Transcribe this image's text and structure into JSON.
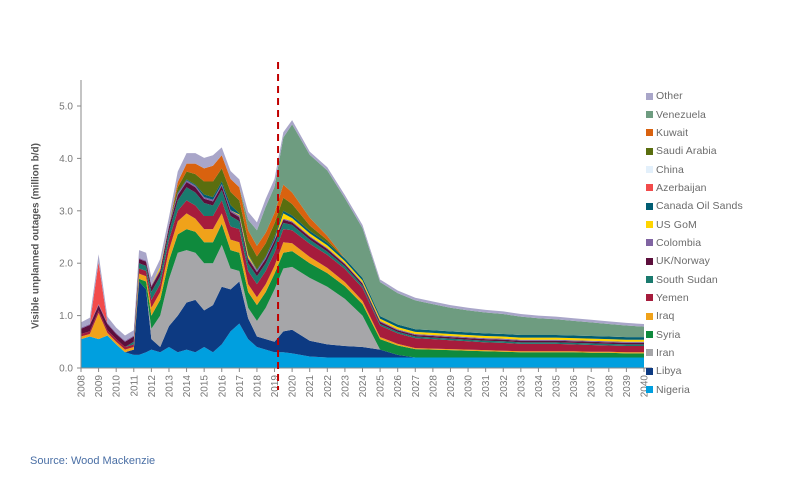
{
  "chart_data": {
    "type": "area",
    "stacked": true,
    "title": "",
    "xlabel": "",
    "ylabel": "Visible unplanned outages (million b/d)",
    "ylim": [
      0,
      5.5
    ],
    "yticks": [
      "0.0",
      "1.0",
      "2.0",
      "3.0",
      "4.0",
      "5.0"
    ],
    "xticks": [
      "2008",
      "2009",
      "2010",
      "2011",
      "2012",
      "2013",
      "2014",
      "2015",
      "2016",
      "2017",
      "2018",
      "2019",
      "2020",
      "2021",
      "2022",
      "2023",
      "2024",
      "2025",
      "2026",
      "2027",
      "2028",
      "2029",
      "2030",
      "2031",
      "2032",
      "2033",
      "2034",
      "2035",
      "2036",
      "2037",
      "2038",
      "2039",
      "2040"
    ],
    "annotation": {
      "type": "vertical-dashed-line",
      "x": 2019.2,
      "color": "#c00000"
    },
    "legend_position": "right",
    "x": [
      2008,
      2008.5,
      2009,
      2009.5,
      2010,
      2010.5,
      2011,
      2011.3,
      2011.7,
      2012,
      2012.5,
      2013,
      2013.5,
      2014,
      2014.5,
      2015,
      2015.5,
      2016,
      2016.5,
      2017,
      2017.5,
      2018,
      2018.5,
      2019,
      2019.5,
      2020,
      2021,
      2022,
      2023,
      2024,
      2025,
      2026,
      2027,
      2028,
      2029,
      2030,
      2031,
      2032,
      2033,
      2034,
      2035,
      2036,
      2037,
      2038,
      2039,
      2040
    ],
    "series": [
      {
        "name": "Nigeria",
        "color": "#009fdf",
        "values": [
          0.55,
          0.6,
          0.55,
          0.62,
          0.45,
          0.3,
          0.25,
          0.25,
          0.3,
          0.35,
          0.3,
          0.4,
          0.3,
          0.35,
          0.3,
          0.4,
          0.3,
          0.45,
          0.7,
          0.85,
          0.55,
          0.4,
          0.35,
          0.3,
          0.3,
          0.28,
          0.22,
          0.2,
          0.2,
          0.2,
          0.2,
          0.2,
          0.2,
          0.2,
          0.2,
          0.2,
          0.2,
          0.2,
          0.2,
          0.2,
          0.2,
          0.2,
          0.2,
          0.2,
          0.2,
          0.2
        ]
      },
      {
        "name": "Libya",
        "color": "#0d3a82",
        "values": [
          0.0,
          0.0,
          0.0,
          0.0,
          0.0,
          0.0,
          0.1,
          1.4,
          1.2,
          0.2,
          0.1,
          0.4,
          0.7,
          0.9,
          1.0,
          0.7,
          0.9,
          1.1,
          0.8,
          0.8,
          0.4,
          0.2,
          0.2,
          0.2,
          0.4,
          0.45,
          0.3,
          0.25,
          0.22,
          0.2,
          0.15,
          0.05,
          0.0,
          0.0,
          0.0,
          0.0,
          0.0,
          0.0,
          0.0,
          0.0,
          0.0,
          0.0,
          0.0,
          0.0,
          0.0,
          0.0
        ]
      },
      {
        "name": "Iran",
        "color": "#a6a6a9",
        "values": [
          0.0,
          0.0,
          0.0,
          0.0,
          0.0,
          0.0,
          0.0,
          0.0,
          0.0,
          0.2,
          0.6,
          0.9,
          1.2,
          1.0,
          0.9,
          0.9,
          0.8,
          0.8,
          0.4,
          0.2,
          0.2,
          0.3,
          0.6,
          1.0,
          1.2,
          1.2,
          1.2,
          1.1,
          0.9,
          0.6,
          0.0,
          0.0,
          0.0,
          0.0,
          0.0,
          0.0,
          0.0,
          0.0,
          0.0,
          0.0,
          0.0,
          0.0,
          0.0,
          0.0,
          0.0,
          0.0
        ]
      },
      {
        "name": "Syria",
        "color": "#0f8a3d",
        "values": [
          0.0,
          0.0,
          0.0,
          0.0,
          0.0,
          0.0,
          0.0,
          0.05,
          0.15,
          0.25,
          0.3,
          0.35,
          0.35,
          0.4,
          0.4,
          0.4,
          0.4,
          0.4,
          0.35,
          0.35,
          0.3,
          0.3,
          0.3,
          0.3,
          0.3,
          0.3,
          0.28,
          0.26,
          0.24,
          0.22,
          0.2,
          0.18,
          0.16,
          0.15,
          0.14,
          0.13,
          0.12,
          0.11,
          0.1,
          0.1,
          0.1,
          0.1,
          0.09,
          0.09,
          0.08,
          0.08
        ]
      },
      {
        "name": "Iraq",
        "color": "#f0a21a",
        "values": [
          0.05,
          0.05,
          0.5,
          0.05,
          0.05,
          0.05,
          0.05,
          0.1,
          0.1,
          0.15,
          0.15,
          0.2,
          0.25,
          0.3,
          0.25,
          0.25,
          0.25,
          0.2,
          0.2,
          0.2,
          0.15,
          0.15,
          0.15,
          0.15,
          0.2,
          0.15,
          0.12,
          0.1,
          0.08,
          0.06,
          0.04,
          0.03,
          0.02,
          0.02,
          0.02,
          0.02,
          0.02,
          0.02,
          0.02,
          0.02,
          0.02,
          0.02,
          0.02,
          0.02,
          0.02,
          0.02
        ]
      },
      {
        "name": "Yemen",
        "color": "#a61c3c",
        "values": [
          0.05,
          0.05,
          0.05,
          0.05,
          0.05,
          0.05,
          0.05,
          0.1,
          0.1,
          0.15,
          0.15,
          0.2,
          0.2,
          0.25,
          0.25,
          0.25,
          0.25,
          0.25,
          0.25,
          0.25,
          0.25,
          0.25,
          0.25,
          0.25,
          0.25,
          0.25,
          0.25,
          0.25,
          0.25,
          0.25,
          0.22,
          0.2,
          0.19,
          0.18,
          0.17,
          0.16,
          0.15,
          0.15,
          0.14,
          0.14,
          0.14,
          0.13,
          0.13,
          0.12,
          0.12,
          0.12
        ]
      },
      {
        "name": "South Sudan",
        "color": "#1a7a6e",
        "values": [
          0.0,
          0.0,
          0.0,
          0.0,
          0.0,
          0.0,
          0.05,
          0.1,
          0.1,
          0.15,
          0.15,
          0.15,
          0.2,
          0.25,
          0.25,
          0.25,
          0.2,
          0.2,
          0.2,
          0.15,
          0.15,
          0.15,
          0.15,
          0.15,
          0.12,
          0.1,
          0.08,
          0.06,
          0.05,
          0.04,
          0.03,
          0.03,
          0.03,
          0.03,
          0.03,
          0.03,
          0.03,
          0.03,
          0.03,
          0.03,
          0.03,
          0.03,
          0.03,
          0.03,
          0.03,
          0.03
        ]
      },
      {
        "name": "UK/Norway",
        "color": "#5c0f3c",
        "values": [
          0.1,
          0.12,
          0.1,
          0.12,
          0.1,
          0.1,
          0.1,
          0.08,
          0.08,
          0.1,
          0.1,
          0.1,
          0.1,
          0.1,
          0.1,
          0.08,
          0.08,
          0.08,
          0.08,
          0.08,
          0.08,
          0.08,
          0.08,
          0.08,
          0.06,
          0.05,
          0.05,
          0.05,
          0.04,
          0.04,
          0.04,
          0.03,
          0.03,
          0.03,
          0.03,
          0.03,
          0.03,
          0.03,
          0.03,
          0.03,
          0.03,
          0.03,
          0.03,
          0.03,
          0.03,
          0.03
        ]
      },
      {
        "name": "Colombia",
        "color": "#8064a2",
        "values": [
          0.02,
          0.02,
          0.02,
          0.02,
          0.02,
          0.02,
          0.02,
          0.02,
          0.02,
          0.03,
          0.03,
          0.03,
          0.03,
          0.03,
          0.03,
          0.03,
          0.03,
          0.03,
          0.03,
          0.03,
          0.03,
          0.03,
          0.03,
          0.03,
          0.02,
          0.02,
          0.02,
          0.02,
          0.02,
          0.02,
          0.02,
          0.02,
          0.02,
          0.02,
          0.02,
          0.02,
          0.02,
          0.02,
          0.02,
          0.02,
          0.02,
          0.02,
          0.02,
          0.02,
          0.02,
          0.02
        ]
      },
      {
        "name": "US GoM",
        "color": "#ffd500",
        "values": [
          0.0,
          0.0,
          0.0,
          0.0,
          0.0,
          0.0,
          0.0,
          0.0,
          0.0,
          0.0,
          0.05,
          0.0,
          0.0,
          0.0,
          0.0,
          0.0,
          0.0,
          0.0,
          0.0,
          0.02,
          0.05,
          0.0,
          0.0,
          0.0,
          0.1,
          0.06,
          0.05,
          0.05,
          0.04,
          0.04,
          0.04,
          0.04,
          0.04,
          0.04,
          0.04,
          0.04,
          0.04,
          0.04,
          0.04,
          0.04,
          0.04,
          0.04,
          0.04,
          0.04,
          0.04,
          0.04
        ]
      },
      {
        "name": "Canada Oil Sands",
        "color": "#005d73",
        "values": [
          0.0,
          0.0,
          0.0,
          0.0,
          0.0,
          0.0,
          0.0,
          0.0,
          0.0,
          0.0,
          0.0,
          0.0,
          0.02,
          0.02,
          0.02,
          0.05,
          0.05,
          0.05,
          0.1,
          0.02,
          0.02,
          0.02,
          0.02,
          0.05,
          0.05,
          0.05,
          0.05,
          0.05,
          0.05,
          0.05,
          0.05,
          0.05,
          0.05,
          0.05,
          0.05,
          0.05,
          0.05,
          0.05,
          0.05,
          0.05,
          0.05,
          0.05,
          0.05,
          0.05,
          0.05,
          0.05
        ]
      },
      {
        "name": "Azerbaijan",
        "color": "#f24b4b",
        "values": [
          0.0,
          0.0,
          0.8,
          0.0,
          0.0,
          0.0,
          0.0,
          0.0,
          0.0,
          0.0,
          0.0,
          0.0,
          0.0,
          0.0,
          0.0,
          0.0,
          0.0,
          0.0,
          0.0,
          0.0,
          0.0,
          0.0,
          0.0,
          0.0,
          0.0,
          0.0,
          0.0,
          0.0,
          0.0,
          0.0,
          0.0,
          0.0,
          0.0,
          0.0,
          0.0,
          0.0,
          0.0,
          0.0,
          0.0,
          0.0,
          0.0,
          0.0,
          0.0,
          0.0,
          0.0,
          0.0
        ]
      },
      {
        "name": "China",
        "color": "#e3f0fb",
        "values": [
          0.0,
          0.0,
          0.0,
          0.0,
          0.0,
          0.0,
          0.0,
          0.0,
          0.0,
          0.0,
          0.0,
          0.0,
          0.0,
          0.0,
          0.0,
          0.0,
          0.0,
          0.0,
          0.0,
          0.0,
          0.0,
          0.0,
          0.0,
          0.0,
          0.0,
          0.0,
          0.0,
          0.0,
          0.0,
          0.0,
          0.0,
          0.0,
          0.0,
          0.0,
          0.0,
          0.0,
          0.0,
          0.0,
          0.0,
          0.0,
          0.0,
          0.0,
          0.0,
          0.0,
          0.0,
          0.0
        ]
      },
      {
        "name": "Saudi Arabia",
        "color": "#5a6e0f",
        "values": [
          0.0,
          0.0,
          0.0,
          0.0,
          0.0,
          0.0,
          0.0,
          0.0,
          0.0,
          0.0,
          0.0,
          0.0,
          0.1,
          0.15,
          0.2,
          0.25,
          0.3,
          0.25,
          0.25,
          0.25,
          0.25,
          0.25,
          0.25,
          0.25,
          0.25,
          0.22,
          0.1,
          0.05,
          0.0,
          0.0,
          0.0,
          0.0,
          0.0,
          0.0,
          0.0,
          0.0,
          0.0,
          0.0,
          0.0,
          0.0,
          0.0,
          0.0,
          0.0,
          0.0,
          0.0,
          0.0
        ]
      },
      {
        "name": "Kuwait",
        "color": "#d9620f",
        "values": [
          0.0,
          0.0,
          0.0,
          0.0,
          0.0,
          0.0,
          0.0,
          0.0,
          0.0,
          0.0,
          0.0,
          0.0,
          0.1,
          0.15,
          0.2,
          0.25,
          0.3,
          0.25,
          0.25,
          0.25,
          0.2,
          0.2,
          0.2,
          0.2,
          0.25,
          0.22,
          0.15,
          0.08,
          0.0,
          0.0,
          0.0,
          0.0,
          0.0,
          0.0,
          0.0,
          0.0,
          0.0,
          0.0,
          0.0,
          0.0,
          0.0,
          0.0,
          0.0,
          0.0,
          0.0,
          0.0
        ]
      },
      {
        "name": "Venezuela",
        "color": "#6e9c80",
        "values": [
          0.0,
          0.0,
          0.0,
          0.0,
          0.0,
          0.0,
          0.0,
          0.0,
          0.0,
          0.0,
          0.0,
          0.0,
          0.0,
          0.0,
          0.0,
          0.0,
          0.0,
          0.0,
          0.0,
          0.0,
          0.2,
          0.3,
          0.5,
          0.5,
          0.9,
          1.3,
          1.2,
          1.25,
          1.15,
          0.95,
          0.65,
          0.6,
          0.55,
          0.5,
          0.45,
          0.42,
          0.4,
          0.38,
          0.35,
          0.32,
          0.3,
          0.28,
          0.26,
          0.24,
          0.22,
          0.2
        ]
      },
      {
        "name": "Other",
        "color": "#a9a6c9",
        "values": [
          0.1,
          0.12,
          0.15,
          0.12,
          0.1,
          0.1,
          0.1,
          0.15,
          0.15,
          0.15,
          0.15,
          0.15,
          0.2,
          0.2,
          0.2,
          0.2,
          0.2,
          0.15,
          0.15,
          0.15,
          0.15,
          0.15,
          0.15,
          0.15,
          0.1,
          0.08,
          0.06,
          0.06,
          0.06,
          0.06,
          0.05,
          0.05,
          0.05,
          0.05,
          0.05,
          0.05,
          0.05,
          0.05,
          0.05,
          0.05,
          0.05,
          0.05,
          0.05,
          0.05,
          0.05,
          0.05
        ]
      }
    ]
  },
  "legend": {
    "items": [
      {
        "label": "Other",
        "color": "#a9a6c9"
      },
      {
        "label": "Venezuela",
        "color": "#6e9c80"
      },
      {
        "label": "Kuwait",
        "color": "#d9620f"
      },
      {
        "label": "Saudi Arabia",
        "color": "#5a6e0f"
      },
      {
        "label": "China",
        "color": "#e3f0fb"
      },
      {
        "label": "Azerbaijan",
        "color": "#f24b4b"
      },
      {
        "label": "Canada Oil Sands",
        "color": "#005d73"
      },
      {
        "label": "US GoM",
        "color": "#ffd500"
      },
      {
        "label": "Colombia",
        "color": "#8064a2"
      },
      {
        "label": "UK/Norway",
        "color": "#5c0f3c"
      },
      {
        "label": "South Sudan",
        "color": "#1a7a6e"
      },
      {
        "label": "Yemen",
        "color": "#a61c3c"
      },
      {
        "label": "Iraq",
        "color": "#f0a21a"
      },
      {
        "label": "Syria",
        "color": "#0f8a3d"
      },
      {
        "label": "Iran",
        "color": "#a6a6a9"
      },
      {
        "label": "Libya",
        "color": "#0d3a82"
      },
      {
        "label": "Nigeria",
        "color": "#009fdf"
      }
    ]
  },
  "axis": {
    "ylabel": "Visible unplanned outages (million b/d)"
  },
  "footer": {
    "source": "Source: Wood Mackenzie"
  }
}
